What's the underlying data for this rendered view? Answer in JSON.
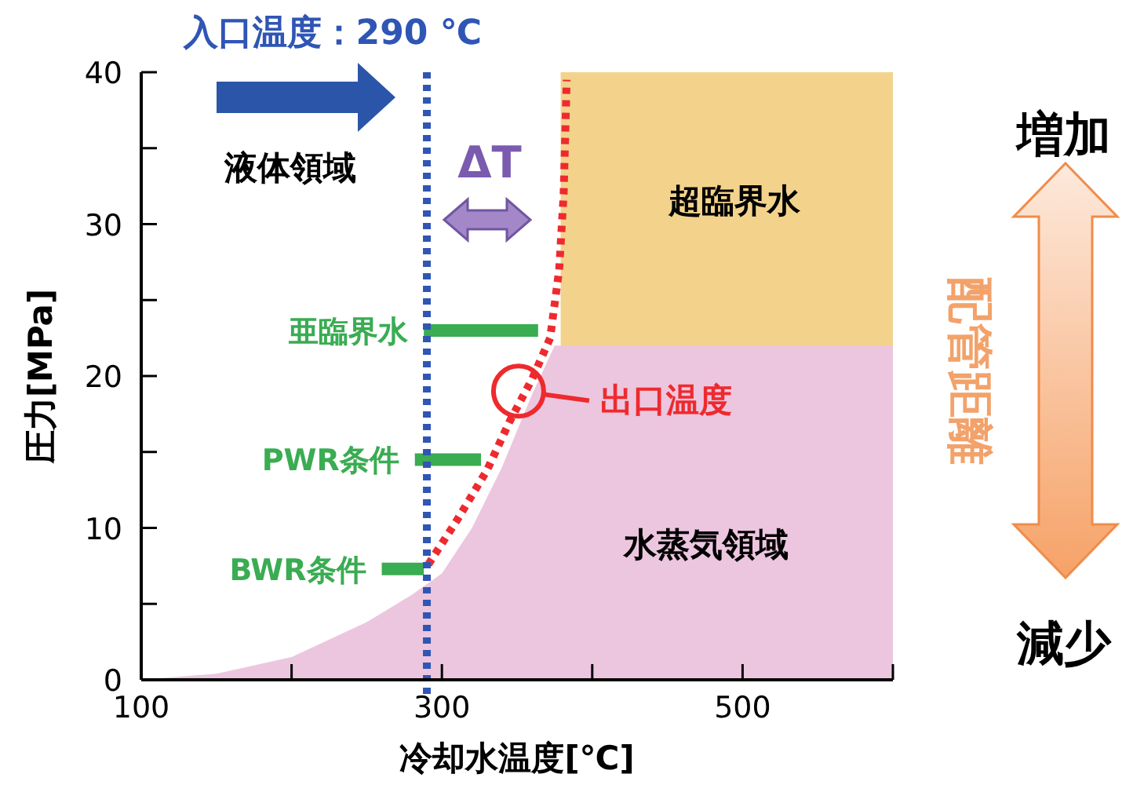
{
  "chart_data": {
    "type": "area",
    "xlabel": "冷却水温度[℃]",
    "ylabel": "圧力[MPa]",
    "xlim": [
      100,
      600
    ],
    "ylim": [
      0,
      40
    ],
    "xticks": [
      100,
      {
        "value": 200,
        "label": null
      },
      300,
      {
        "value": 400,
        "label": null
      },
      500,
      {
        "value": 600,
        "label": null
      }
    ],
    "yticks": [
      0,
      {
        "value": 5,
        "label": null
      },
      10,
      {
        "value": 15,
        "label": null
      },
      20,
      {
        "value": 25,
        "label": null
      },
      30,
      {
        "value": 35,
        "label": null
      },
      40
    ],
    "series": [
      {
        "color": "#f3d38c",
        "x": [
          379,
          600
        ],
        "values": [
          40,
          40
        ]
      },
      {
        "color": "#ecc6df",
        "x": [
          100,
          150,
          200,
          250,
          280,
          300,
          320,
          340,
          360,
          375,
          600
        ],
        "values": [
          0,
          0.4,
          1.5,
          3.8,
          5.6,
          7,
          10,
          14,
          18.8,
          22,
          22
        ]
      },
      {
        "type": "line",
        "name": "亜臨界水",
        "color": "#3aac52",
        "x": [
          288,
          364
        ],
        "values": [
          23,
          23
        ]
      },
      {
        "type": "line",
        "name": "PWR条件",
        "color": "#3aac52",
        "x": [
          282,
          326
        ],
        "values": [
          14.5,
          14.5
        ]
      },
      {
        "type": "line",
        "name": "BWR条件",
        "color": "#3aac52",
        "x": [
          260,
          288
        ],
        "values": [
          7.3,
          7.3
        ]
      },
      {
        "type": "line",
        "color": "#ee2a2e",
        "line_style": "dotted",
        "x": [
          291,
          310,
          330,
          345,
          360,
          372,
          378,
          381,
          383
        ],
        "values": [
          7.6,
          10.5,
          13.8,
          17,
          19.8,
          22.5,
          27,
          32,
          39.5
        ]
      }
    ],
    "ref_lines": [
      {
        "axis": "x",
        "value": 290,
        "label": "入口温度：290 ℃",
        "color": "#2f55b5",
        "line_style": "dotted"
      }
    ],
    "annotations": [
      "液体領域",
      "超臨界水",
      "水蒸気領域",
      "ΔT",
      {
        "text": "出口温度",
        "x": 351,
        "y": 19
      },
      "増加",
      "配管距離",
      "減少"
    ]
  }
}
